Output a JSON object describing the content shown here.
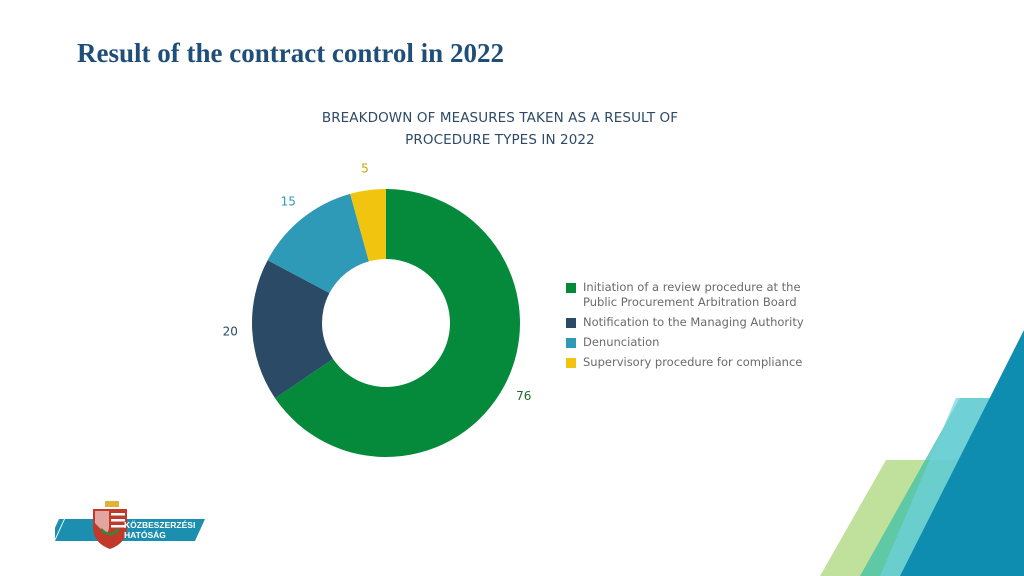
{
  "page_title": "Result of the contract control in 2022",
  "chart_data": {
    "type": "pie",
    "donut": true,
    "title_lines": [
      "BREAKDOWN OF MEASURES TAKEN AS A RESULT OF",
      "PROCEDURE TYPES IN 2022"
    ],
    "categories": [
      "Initiation of a review procedure at the Public Procurement Arbitration Board",
      "Notification to the Managing Authority",
      "Denunciation",
      "Supervisory procedure for compliance"
    ],
    "values": [
      76,
      20,
      15,
      5
    ],
    "colors": [
      "#048a3a",
      "#2a4a66",
      "#2e9ab8",
      "#f1c40f"
    ],
    "data_labels": [
      "76",
      "20",
      "15",
      "5"
    ],
    "label_colors": [
      "#1e6b30",
      "#2a4a66",
      "#2e9ab8",
      "#c9a400"
    ],
    "legend_position": "right",
    "legend_lines": [
      [
        "Initiation of a review procedure at the",
        "Public Procurement Arbitration Board"
      ],
      [
        "Notification to the Managing Authority"
      ],
      [
        "Denunciation"
      ],
      [
        "Supervisory procedure for compliance"
      ]
    ]
  },
  "logo": {
    "line1": "KÖZBESZERZÉSI",
    "line2": "HATÓSÁG"
  }
}
